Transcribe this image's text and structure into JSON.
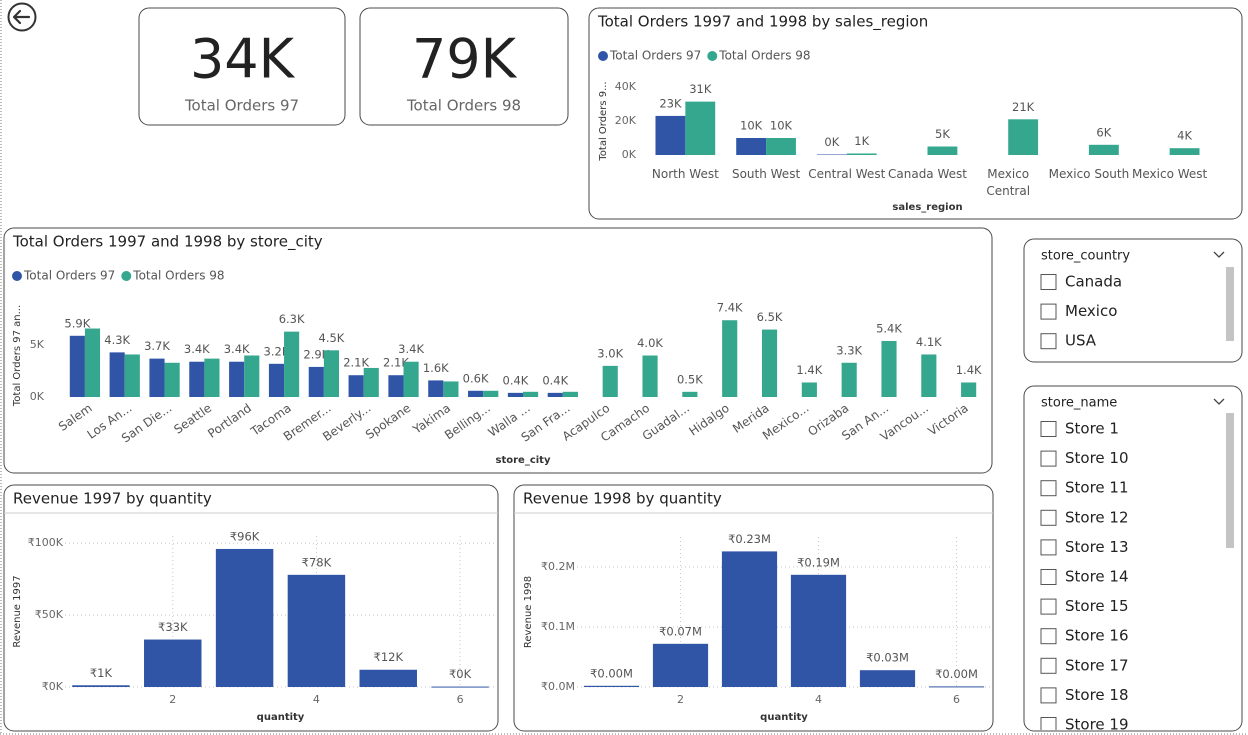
{
  "cards": [
    {
      "value": "34K",
      "label": "Total Orders 97"
    },
    {
      "value": "79K",
      "label": "Total Orders 98"
    }
  ],
  "chart_data": [
    {
      "type": "bar",
      "title": "Total Orders 1997 and 1998 by sales_region",
      "legend": "top-left",
      "grid": false,
      "x_label": "sales_region",
      "y_label": "Total Orders 9...",
      "categories": [
        "North West",
        "South West",
        "Central West",
        "Canada West",
        "Mexico Central",
        "Mexico South",
        "Mexico West"
      ],
      "series": [
        {
          "name": "Total Orders 97",
          "color": "#3155a6",
          "values": [
            23000,
            10000,
            300,
            null,
            null,
            null,
            null
          ],
          "value_labels": [
            "23K",
            "10K",
            "0K",
            null,
            null,
            null,
            null
          ]
        },
        {
          "name": "Total Orders 98",
          "color": "#36a78f",
          "values": [
            31400,
            10000,
            900,
            5000,
            21000,
            6000,
            4000
          ],
          "value_labels": [
            "31K",
            "10K",
            "1K",
            "5K",
            "21K",
            "6K",
            "4K"
          ]
        }
      ],
      "ylim": [
        0,
        40000
      ],
      "yticks": [
        {
          "value": 0,
          "label": "0K"
        },
        {
          "value": 20000,
          "label": "20K"
        },
        {
          "value": 40000,
          "label": "40K"
        }
      ]
    },
    {
      "type": "bar",
      "title": "Total Orders 1997 and 1998 by store_city",
      "legend": "top-left",
      "grid": false,
      "x_label": "store_city",
      "y_label": "Total Orders 97 an...",
      "categories": [
        "Salem",
        "Los An...",
        "San Die...",
        "Seattle",
        "Portland",
        "Tacoma",
        "Bremer...",
        "Beverly...",
        "Spokane",
        "Yakima",
        "Belling...",
        "Walla ...",
        "San Fra...",
        "Acapulco",
        "Camacho",
        "Guadal...",
        "Hidalgo",
        "Merida",
        "Mexico...",
        "Orizaba",
        "San An...",
        "Vancou...",
        "Victoria"
      ],
      "series": [
        {
          "name": "Total Orders 97",
          "color": "#3155a6",
          "values": [
            5900,
            4300,
            3700,
            3400,
            3400,
            3200,
            2900,
            2100,
            2100,
            1600,
            600,
            400,
            400,
            null,
            null,
            null,
            null,
            null,
            null,
            null,
            null,
            null,
            null
          ],
          "value_labels": [
            "5.9K",
            "4.3K",
            "3.7K",
            "3.4K",
            "3.4K",
            "3.2K",
            "2.9K",
            "2.1K",
            "2.1K",
            "1.6K",
            "0.6K",
            "0.4K",
            "0.4K",
            null,
            null,
            null,
            null,
            null,
            null,
            null,
            null,
            null,
            null
          ]
        },
        {
          "name": "Total Orders 98",
          "color": "#36a78f",
          "values": [
            6600,
            4100,
            3300,
            3700,
            4000,
            6300,
            4500,
            2800,
            3400,
            1500,
            600,
            500,
            500,
            3000,
            4000,
            500,
            7400,
            6500,
            1400,
            3300,
            5400,
            4100,
            1400
          ],
          "value_labels": [
            null,
            null,
            null,
            null,
            null,
            "6.3K",
            "4.5K",
            null,
            "3.4K",
            null,
            null,
            null,
            null,
            "3.0K",
            "4.0K",
            "0.5K",
            "7.4K",
            "6.5K",
            "1.4K",
            "3.3K",
            "5.4K",
            "4.1K",
            "1.4K"
          ]
        }
      ],
      "ylim": [
        0,
        8000
      ],
      "yticks": [
        {
          "value": 0,
          "label": "0K"
        },
        {
          "value": 5000,
          "label": "5K"
        }
      ]
    },
    {
      "type": "bar",
      "title": "Revenue 1997 by quantity",
      "grid": true,
      "x_label": "quantity",
      "y_label": "Revenue 1997",
      "color": "#3155a6",
      "x": [
        1,
        2,
        3,
        4,
        5,
        6
      ],
      "values": [
        1200,
        33000,
        96000,
        78000,
        12000,
        300
      ],
      "value_labels": [
        "₹1K",
        "₹33K",
        "₹96K",
        "₹78K",
        "₹12K",
        "₹0K"
      ],
      "xlim": [
        0.5,
        6.5
      ],
      "xticks": [
        2,
        4,
        6
      ],
      "ylim": [
        0,
        105000
      ],
      "yticks": [
        {
          "value": 0,
          "label": "₹0K"
        },
        {
          "value": 50000,
          "label": "₹50K"
        },
        {
          "value": 100000,
          "label": "₹100K"
        }
      ]
    },
    {
      "type": "bar",
      "title": "Revenue 1998 by quantity",
      "grid": true,
      "x_label": "quantity",
      "y_label": "Revenue 1998",
      "color": "#3155a6",
      "x": [
        1,
        2,
        3,
        4,
        5,
        6
      ],
      "values": [
        2000,
        72000,
        226000,
        187000,
        28000,
        1000
      ],
      "value_labels": [
        "₹0.00M",
        "₹0.07M",
        "₹0.23M",
        "₹0.19M",
        "₹0.03M",
        "₹0.00M"
      ],
      "xlim": [
        0.5,
        6.5
      ],
      "xticks": [
        2,
        4,
        6
      ],
      "ylim": [
        0,
        250000
      ],
      "yticks": [
        {
          "value": 0,
          "label": "₹0.0M"
        },
        {
          "value": 100000,
          "label": "₹0.1M"
        },
        {
          "value": 200000,
          "label": "₹0.2M"
        }
      ]
    }
  ],
  "slicers": [
    {
      "title": "store_country",
      "items": [
        "Canada",
        "Mexico",
        "USA"
      ]
    },
    {
      "title": "store_name",
      "items": [
        "Store 1",
        "Store 10",
        "Store 11",
        "Store 12",
        "Store 13",
        "Store 14",
        "Store 15",
        "Store 16",
        "Store 17",
        "Store 18",
        "Store 19"
      ]
    }
  ]
}
